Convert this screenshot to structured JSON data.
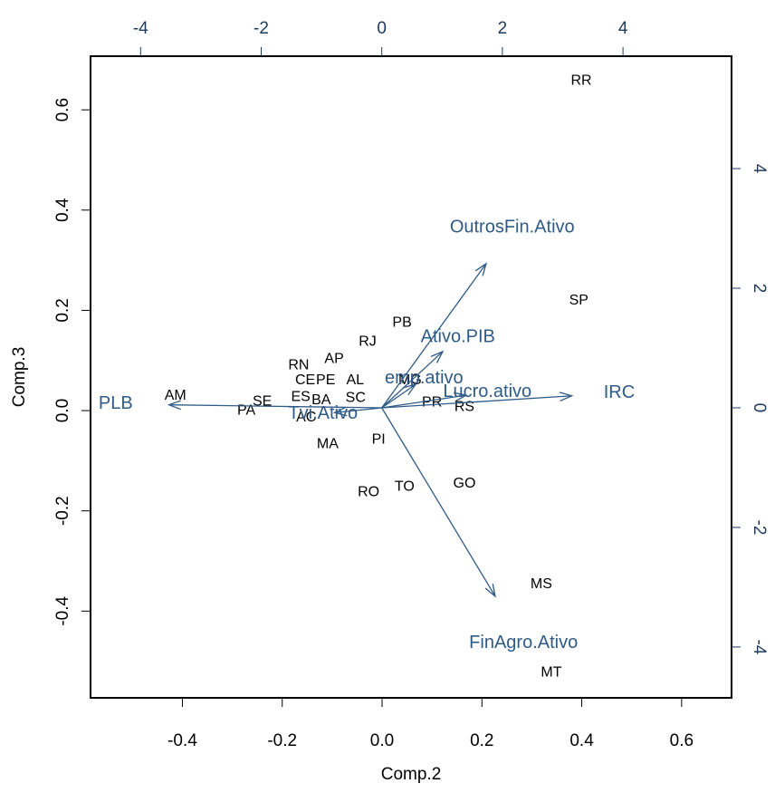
{
  "chart_data": {
    "type": "biplot",
    "x_label": "Comp.2",
    "y_label": "Comp.3",
    "xlim": [
      -0.584,
      0.7
    ],
    "ylim": [
      -0.573,
      0.707
    ],
    "xticks": [
      -0.4,
      -0.2,
      {
        "value": 0,
        "label": "0.0"
      },
      0.2,
      0.4,
      0.6
    ],
    "yticks": [
      -0.4,
      -0.2,
      {
        "value": 0,
        "label": "0.0"
      },
      0.2,
      0.4,
      0.6
    ],
    "x2lim": [
      -4.83,
      5.8
    ],
    "y2lim": [
      -4.85,
      5.88
    ],
    "x2ticks": [
      -4,
      -2,
      0,
      2,
      4
    ],
    "y2ticks": [
      -4,
      -2,
      0,
      2,
      4
    ],
    "points": {
      "color": "#000000",
      "labels": [
        "RR",
        "SP",
        "PB",
        "RJ",
        "AP",
        "RN",
        "CE",
        "PE",
        "AL",
        "AM",
        "ES",
        "SE",
        "BA",
        "SC",
        "PA",
        "AC",
        "MA",
        "PI",
        "MG",
        "PR",
        "RS",
        "GO",
        "TO",
        "RO",
        "MS",
        "MT"
      ],
      "x": [
        0.399,
        0.394,
        0.04,
        -0.029,
        -0.096,
        -0.167,
        -0.154,
        -0.113,
        -0.054,
        -0.414,
        -0.163,
        -0.24,
        -0.122,
        -0.053,
        -0.272,
        -0.152,
        -0.109,
        -0.007,
        0.056,
        0.1,
        0.165,
        0.165,
        0.045,
        -0.027,
        0.319,
        0.339
      ],
      "y": [
        0.658,
        0.219,
        0.175,
        0.137,
        0.103,
        0.09,
        0.06,
        0.06,
        0.06,
        0.029,
        0.027,
        0.018,
        0.02,
        0.025,
        0.0,
        -0.014,
        -0.067,
        -0.058,
        0.06,
        0.016,
        0.007,
        -0.146,
        -0.152,
        -0.163,
        -0.347,
        -0.523
      ]
    },
    "loadings": {
      "color": "#2f5b87",
      "labels": [
        "OutrosFin.Ativo",
        "Ativo.PIB",
        "emp.ativo",
        "Lucro.ativo",
        "IRC",
        "PLB",
        "Tvi.Ativo",
        "FinAgro.Ativo"
      ],
      "x": [
        1.73,
        1.01,
        0.56,
        1.4,
        3.15,
        -3.53,
        -0.78,
        1.88
      ],
      "y": [
        2.41,
        0.94,
        0.39,
        0.21,
        0.2,
        0.05,
        -0.08,
        -3.15
      ]
    }
  }
}
